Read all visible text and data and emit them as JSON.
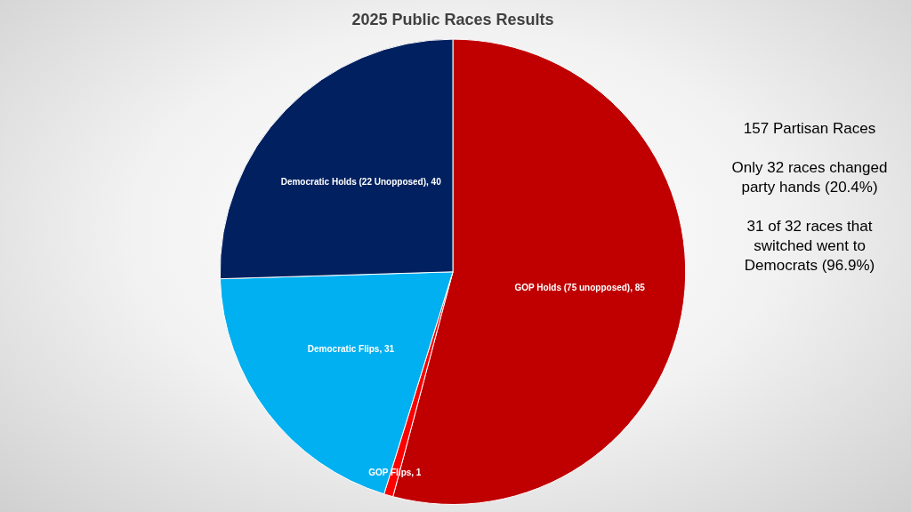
{
  "chart_data": {
    "type": "pie",
    "title": "2025 Public Races Results",
    "categories": [
      "GOP Holds (75 unopposed)",
      "GOP Flips",
      "Democratic Flips",
      "Democratic Holds (22 Unopposed)"
    ],
    "values": [
      85,
      1,
      31,
      40
    ],
    "colors": [
      "#c00000",
      "#ff0000",
      "#00b0f0",
      "#002060"
    ],
    "value_labels": [
      ", 85",
      ", 1",
      ", 31",
      ", 40"
    ],
    "legend": false,
    "annotations": [
      "157 Partisan Races",
      "Only 32 races changed party hands (20.4%)",
      "31 of 32 races that switched went to Democrats (96.9%)"
    ]
  }
}
